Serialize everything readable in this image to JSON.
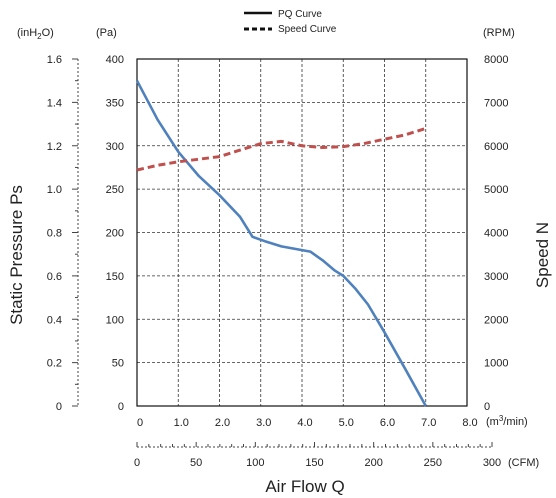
{
  "chart_data": {
    "type": "line",
    "legend": {
      "position": "top-center"
    },
    "grid": true,
    "left_label": "Static Pressure Ps",
    "right_label": "Speed N",
    "bottom_label": "Air Flow Q",
    "units": {
      "inh2o_prefix": "(inH",
      "inh2o_sub": "2",
      "inh2o_suffix": "O)",
      "pa": "(Pa)",
      "rpm": "(RPM)",
      "m3_prefix": "(m",
      "m3_sup": "3",
      "m3_suffix": "/min)",
      "cfm": "(CFM)"
    },
    "pa_axis": {
      "range": [
        0,
        400
      ],
      "ticks": [
        "0",
        "50",
        "100",
        "150",
        "200",
        "250",
        "300",
        "350",
        "400"
      ]
    },
    "inh2o_axis": {
      "range": [
        0,
        1.6
      ],
      "ticks": [
        "0",
        "0.2",
        "0.4",
        "0.6",
        "0.8",
        "1.0",
        "1.2",
        "1.4",
        "1.6"
      ]
    },
    "rpm_axis": {
      "range": [
        0,
        8000
      ],
      "ticks": [
        "0",
        "1000",
        "2000",
        "3000",
        "4000",
        "5000",
        "6000",
        "7000",
        "8000"
      ]
    },
    "m3_axis": {
      "range": [
        0,
        8.0
      ],
      "ticks": [
        "0",
        "1.0",
        "2.0",
        "3.0",
        "4.0",
        "5.0",
        "6.0",
        "7.0",
        "8.0"
      ]
    },
    "cfm_axis": {
      "range": [
        0,
        300
      ],
      "ticks": [
        "0",
        "50",
        "100",
        "150",
        "200",
        "250",
        "300"
      ]
    },
    "series": [
      {
        "name": "PQ Curve",
        "axis": "pressure",
        "color": "#4f81bd",
        "dash": "solid",
        "points": [
          [
            0,
            375
          ],
          [
            0.5,
            330
          ],
          [
            1.0,
            293
          ],
          [
            1.5,
            265
          ],
          [
            2.0,
            243
          ],
          [
            2.5,
            218
          ],
          [
            2.8,
            195
          ],
          [
            3.1,
            190
          ],
          [
            3.5,
            184
          ],
          [
            4.2,
            178
          ],
          [
            4.5,
            168
          ],
          [
            4.8,
            156
          ],
          [
            5.0,
            150
          ],
          [
            5.3,
            135
          ],
          [
            5.6,
            117
          ],
          [
            6.0,
            85
          ],
          [
            6.5,
            43
          ],
          [
            7.0,
            0
          ]
        ]
      },
      {
        "name": "Speed Curve",
        "axis": "speed",
        "color": "#c0504d",
        "dash": "dashed",
        "points": [
          [
            0,
            5440
          ],
          [
            0.5,
            5550
          ],
          [
            1.0,
            5630
          ],
          [
            2.0,
            5750
          ],
          [
            2.5,
            5900
          ],
          [
            3.0,
            6050
          ],
          [
            3.5,
            6100
          ],
          [
            4.0,
            6000
          ],
          [
            4.5,
            5960
          ],
          [
            5.0,
            5980
          ],
          [
            5.5,
            6050
          ],
          [
            6.0,
            6150
          ],
          [
            6.5,
            6250
          ],
          [
            7.0,
            6400
          ]
        ]
      }
    ]
  }
}
